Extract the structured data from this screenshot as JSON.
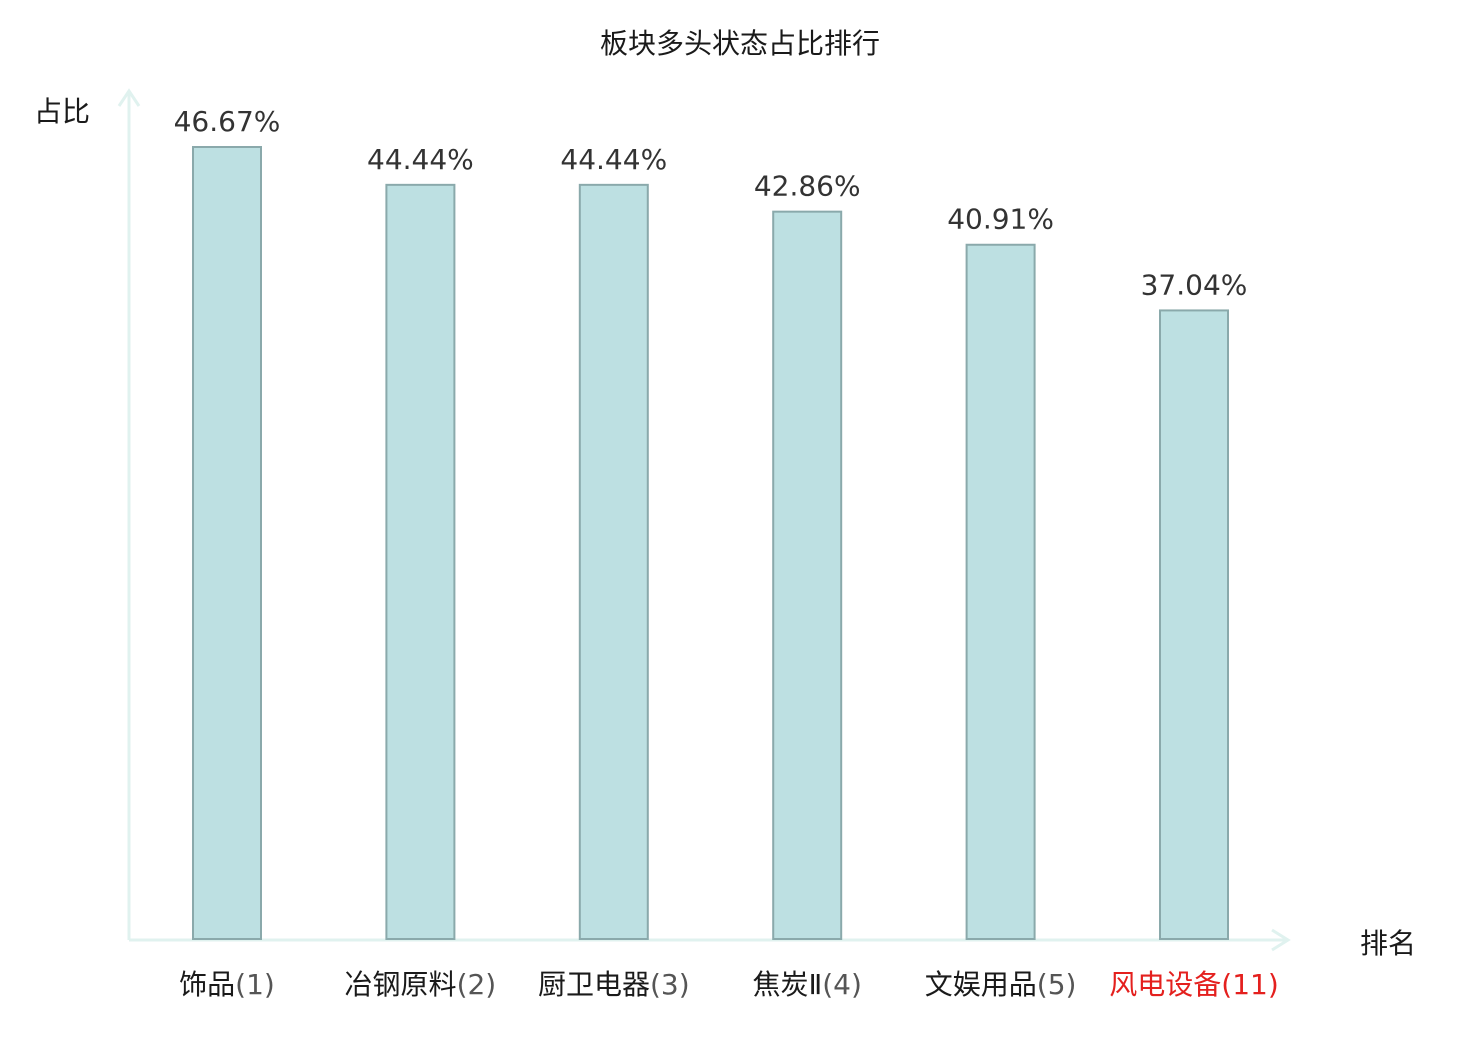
{
  "chart_data": {
    "type": "bar",
    "title": "板块多头状态占比排行",
    "ylabel": "占比",
    "xlabel": "排名",
    "ylim": [
      0,
      50
    ],
    "categories": [
      "饰品",
      "冶钢原料",
      "厨卫电器",
      "焦炭Ⅱ",
      "文娱用品",
      "风电设备"
    ],
    "ranks": [
      "(1)",
      "(2)",
      "(3)",
      "(4)",
      "(5)",
      "(11)"
    ],
    "values": [
      46.67,
      44.44,
      44.44,
      42.86,
      40.91,
      37.04
    ],
    "data_labels": [
      "46.67%",
      "44.44%",
      "44.44%",
      "42.86%",
      "40.91%",
      "37.04%"
    ],
    "highlight_index": 5,
    "colors": {
      "bar_fill": "#bde0e2",
      "bar_stroke": "#8aa9ab",
      "axis": "#e0f2ef",
      "label_text": "#333333",
      "tick_text": "#1a1a1a",
      "highlight": "#e4201e"
    },
    "grid": false,
    "legend": "none"
  }
}
